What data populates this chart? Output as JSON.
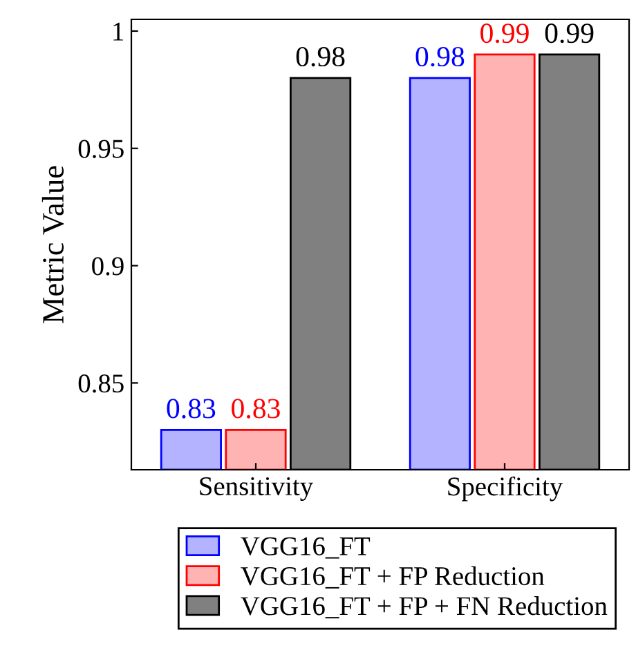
{
  "chart_data": {
    "type": "bar",
    "ylabel": "Metric Value",
    "categories": [
      "Sensitivity",
      "Specificity"
    ],
    "series": [
      {
        "name": "VGG16_FT",
        "color": "#b3b3ff",
        "values": [
          0.83,
          0.98
        ]
      },
      {
        "name": "VGG16_FT + FP Reduction",
        "color": "#ffb3b3",
        "values": [
          0.83,
          0.99
        ]
      },
      {
        "name": "VGG16_FT + FP + FN Reduction",
        "color": "#808080",
        "values": [
          0.98,
          0.99
        ]
      }
    ],
    "ylim": [
      0.813,
      1.005
    ],
    "yticks": [
      0.85,
      0.9,
      0.95,
      1
    ],
    "data_labels": true,
    "legend": "bottom",
    "grid": false
  }
}
